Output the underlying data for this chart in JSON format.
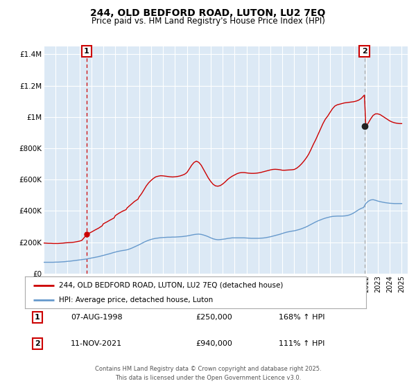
{
  "title": "244, OLD BEDFORD ROAD, LUTON, LU2 7EQ",
  "subtitle": "Price paid vs. HM Land Registry's House Price Index (HPI)",
  "bg_color": "#dce9f5",
  "fig_bg_color": "#ffffff",
  "red_line_color": "#cc0000",
  "blue_line_color": "#6699cc",
  "marker1_date": 1998.6,
  "marker1_red_y": 250000,
  "marker2_date": 2021.87,
  "marker2_red_y": 940000,
  "legend_label_red": "244, OLD BEDFORD ROAD, LUTON, LU2 7EQ (detached house)",
  "legend_label_blue": "HPI: Average price, detached house, Luton",
  "annotation1_box": "1",
  "annotation2_box": "2",
  "table_data": [
    [
      "1",
      "07-AUG-1998",
      "£250,000",
      "168% ↑ HPI"
    ],
    [
      "2",
      "11-NOV-2021",
      "£940,000",
      "111% ↑ HPI"
    ]
  ],
  "footnote": "Contains HM Land Registry data © Crown copyright and database right 2025.\nThis data is licensed under the Open Government Licence v3.0.",
  "ylim": [
    0,
    1450000
  ],
  "yticks": [
    0,
    200000,
    400000,
    600000,
    800000,
    1000000,
    1200000,
    1400000
  ],
  "ytick_labels": [
    "£0",
    "£200K",
    "£400K",
    "£600K",
    "£800K",
    "£1M",
    "£1.2M",
    "£1.4M"
  ],
  "xlim_start": 1995.0,
  "xlim_end": 2025.5,
  "red_x": [
    1995.0,
    1995.2,
    1995.4,
    1995.6,
    1995.8,
    1996.0,
    1996.2,
    1996.4,
    1996.6,
    1996.8,
    1997.0,
    1997.2,
    1997.4,
    1997.6,
    1997.8,
    1998.0,
    1998.2,
    1998.4,
    1998.6,
    1999.0,
    1999.3,
    1999.6,
    1999.9,
    2000.0,
    2000.3,
    2000.6,
    2000.9,
    2001.0,
    2001.3,
    2001.6,
    2001.9,
    2002.0,
    2002.3,
    2002.6,
    2002.9,
    2003.0,
    2003.2,
    2003.4,
    2003.6,
    2003.8,
    2004.0,
    2004.2,
    2004.4,
    2004.6,
    2004.8,
    2005.0,
    2005.2,
    2005.4,
    2005.6,
    2005.8,
    2006.0,
    2006.2,
    2006.4,
    2006.6,
    2006.8,
    2007.0,
    2007.2,
    2007.4,
    2007.6,
    2007.8,
    2008.0,
    2008.2,
    2008.4,
    2008.6,
    2008.8,
    2009.0,
    2009.2,
    2009.4,
    2009.6,
    2009.8,
    2010.0,
    2010.2,
    2010.4,
    2010.6,
    2010.8,
    2011.0,
    2011.2,
    2011.4,
    2011.6,
    2011.8,
    2012.0,
    2012.2,
    2012.4,
    2012.6,
    2012.8,
    2013.0,
    2013.2,
    2013.4,
    2013.6,
    2013.8,
    2014.0,
    2014.2,
    2014.4,
    2014.6,
    2014.8,
    2015.0,
    2015.2,
    2015.4,
    2015.6,
    2015.8,
    2016.0,
    2016.2,
    2016.4,
    2016.6,
    2016.8,
    2017.0,
    2017.2,
    2017.4,
    2017.6,
    2017.8,
    2018.0,
    2018.2,
    2018.4,
    2018.6,
    2018.8,
    2019.0,
    2019.2,
    2019.4,
    2019.6,
    2019.8,
    2020.0,
    2020.2,
    2020.4,
    2020.6,
    2020.8,
    2021.0,
    2021.2,
    2021.4,
    2021.6,
    2021.87,
    2022.0,
    2022.2,
    2022.4,
    2022.6,
    2022.8,
    2023.0,
    2023.2,
    2023.4,
    2023.6,
    2023.8,
    2024.0,
    2024.2,
    2024.4,
    2024.6,
    2024.8,
    2025.0
  ],
  "red_y": [
    195000,
    194000,
    193000,
    193000,
    192000,
    192000,
    192000,
    193000,
    194000,
    196000,
    197000,
    198000,
    199000,
    201000,
    204000,
    207000,
    212000,
    230000,
    250000,
    265000,
    278000,
    290000,
    305000,
    318000,
    330000,
    343000,
    355000,
    370000,
    385000,
    398000,
    408000,
    420000,
    440000,
    460000,
    475000,
    490000,
    510000,
    535000,
    560000,
    580000,
    595000,
    608000,
    618000,
    622000,
    625000,
    624000,
    622000,
    620000,
    618000,
    617000,
    618000,
    620000,
    623000,
    628000,
    634000,
    645000,
    668000,
    692000,
    710000,
    718000,
    710000,
    692000,
    665000,
    638000,
    610000,
    588000,
    570000,
    560000,
    558000,
    562000,
    572000,
    585000,
    600000,
    612000,
    622000,
    630000,
    638000,
    643000,
    645000,
    645000,
    643000,
    641000,
    640000,
    640000,
    641000,
    643000,
    646000,
    650000,
    654000,
    658000,
    662000,
    665000,
    666000,
    665000,
    663000,
    660000,
    660000,
    661000,
    662000,
    663000,
    665000,
    673000,
    685000,
    700000,
    718000,
    738000,
    762000,
    793000,
    826000,
    856000,
    890000,
    924000,
    958000,
    986000,
    1006000,
    1030000,
    1053000,
    1070000,
    1078000,
    1082000,
    1086000,
    1090000,
    1092000,
    1094000,
    1096000,
    1098000,
    1102000,
    1108000,
    1118000,
    1140000,
    940000,
    962000,
    988000,
    1010000,
    1020000,
    1020000,
    1015000,
    1005000,
    995000,
    985000,
    975000,
    968000,
    963000,
    960000,
    958000,
    958000
  ],
  "blue_x": [
    1995.0,
    1995.2,
    1995.4,
    1995.6,
    1995.8,
    1996.0,
    1996.2,
    1996.4,
    1996.6,
    1996.8,
    1997.0,
    1997.2,
    1997.4,
    1997.6,
    1997.8,
    1998.0,
    1998.2,
    1998.4,
    1998.6,
    1998.8,
    1999.0,
    1999.2,
    1999.4,
    1999.6,
    1999.8,
    2000.0,
    2000.2,
    2000.4,
    2000.6,
    2000.8,
    2001.0,
    2001.2,
    2001.4,
    2001.6,
    2001.8,
    2002.0,
    2002.2,
    2002.4,
    2002.6,
    2002.8,
    2003.0,
    2003.2,
    2003.4,
    2003.6,
    2003.8,
    2004.0,
    2004.2,
    2004.4,
    2004.6,
    2004.8,
    2005.0,
    2005.2,
    2005.4,
    2005.6,
    2005.8,
    2006.0,
    2006.2,
    2006.4,
    2006.6,
    2006.8,
    2007.0,
    2007.2,
    2007.4,
    2007.6,
    2007.8,
    2008.0,
    2008.2,
    2008.4,
    2008.6,
    2008.8,
    2009.0,
    2009.2,
    2009.4,
    2009.6,
    2009.8,
    2010.0,
    2010.2,
    2010.4,
    2010.6,
    2010.8,
    2011.0,
    2011.2,
    2011.4,
    2011.6,
    2011.8,
    2012.0,
    2012.2,
    2012.4,
    2012.6,
    2012.8,
    2013.0,
    2013.2,
    2013.4,
    2013.6,
    2013.8,
    2014.0,
    2014.2,
    2014.4,
    2014.6,
    2014.8,
    2015.0,
    2015.2,
    2015.4,
    2015.6,
    2015.8,
    2016.0,
    2016.2,
    2016.4,
    2016.6,
    2016.8,
    2017.0,
    2017.2,
    2017.4,
    2017.6,
    2017.8,
    2018.0,
    2018.2,
    2018.4,
    2018.6,
    2018.8,
    2019.0,
    2019.2,
    2019.4,
    2019.6,
    2019.8,
    2020.0,
    2020.2,
    2020.4,
    2020.6,
    2020.8,
    2021.0,
    2021.2,
    2021.4,
    2021.6,
    2021.8,
    2022.0,
    2022.2,
    2022.4,
    2022.6,
    2022.8,
    2023.0,
    2023.2,
    2023.4,
    2023.6,
    2023.8,
    2024.0,
    2024.2,
    2024.4,
    2024.6,
    2024.8,
    2025.0
  ],
  "blue_y": [
    72000,
    72000,
    72000,
    72000,
    72000,
    73000,
    73000,
    74000,
    75000,
    76000,
    78000,
    79000,
    81000,
    83000,
    85000,
    87000,
    89000,
    91000,
    93000,
    96000,
    99000,
    102000,
    105000,
    108000,
    112000,
    116000,
    120000,
    124000,
    128000,
    133000,
    137000,
    141000,
    144000,
    147000,
    149000,
    152000,
    157000,
    163000,
    170000,
    177000,
    184000,
    192000,
    200000,
    207000,
    213000,
    218000,
    222000,
    225000,
    227000,
    229000,
    230000,
    231000,
    232000,
    232000,
    233000,
    233000,
    234000,
    235000,
    236000,
    238000,
    240000,
    243000,
    246000,
    249000,
    251000,
    252000,
    250000,
    246000,
    241000,
    235000,
    228000,
    222000,
    218000,
    216000,
    217000,
    219000,
    221000,
    224000,
    226000,
    228000,
    228000,
    228000,
    228000,
    228000,
    228000,
    227000,
    226000,
    225000,
    225000,
    225000,
    225000,
    226000,
    227000,
    229000,
    232000,
    235000,
    239000,
    243000,
    247000,
    251000,
    256000,
    261000,
    265000,
    268000,
    271000,
    273000,
    277000,
    281000,
    286000,
    292000,
    298000,
    306000,
    314000,
    322000,
    330000,
    337000,
    343000,
    349000,
    354000,
    358000,
    362000,
    365000,
    366000,
    367000,
    367000,
    367000,
    368000,
    370000,
    374000,
    380000,
    388000,
    398000,
    408000,
    416000,
    422000,
    448000,
    462000,
    470000,
    472000,
    468000,
    463000,
    459000,
    456000,
    453000,
    451000,
    449000,
    448000,
    447000,
    447000,
    447000,
    447000
  ]
}
